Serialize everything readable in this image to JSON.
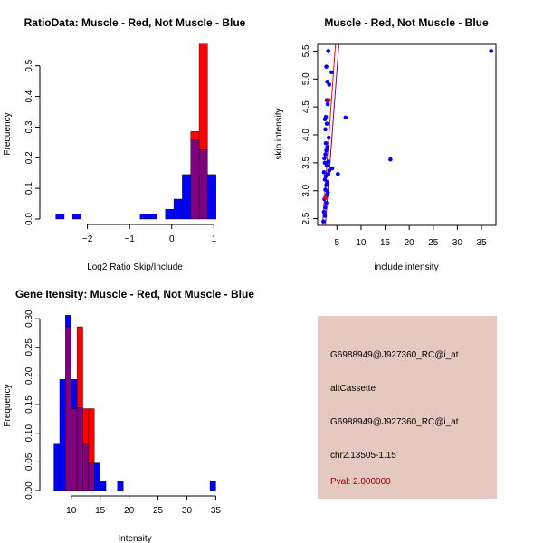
{
  "colors": {
    "red": "#ff0000",
    "blue": "#0000ff",
    "overlap": "#800080",
    "fit_line_red": "#ff0000",
    "fit_line_purple": "#7f0060",
    "info_bg": "#e5c8c0",
    "pval": "#8b0000"
  },
  "chart_data": [
    {
      "id": "ratio",
      "type": "bar",
      "title": "RatioData: Muscle - Red, Not Muscle - Blue",
      "xlabel": "Log2 Ratio Skip/Include",
      "ylabel": "Frequency",
      "xlim": [
        -3.0,
        1.25
      ],
      "ylim": [
        0,
        0.57
      ],
      "xticks": [
        -2,
        -1,
        0,
        1
      ],
      "yticks": [
        0.0,
        0.1,
        0.2,
        0.3,
        0.4,
        0.5
      ],
      "ytick_labels": [
        "0.0",
        "0.1",
        "0.2",
        "0.3",
        "0.4",
        "0.5"
      ],
      "bin_edges": [
        -2.75,
        -2.55,
        -2.35,
        -2.15,
        -1.95,
        -1.75,
        -1.55,
        -1.35,
        -1.15,
        -0.95,
        -0.75,
        -0.55,
        -0.35,
        -0.15,
        0.05,
        0.25,
        0.45,
        0.65,
        0.85,
        1.05
      ],
      "series": [
        {
          "name": "Not Muscle",
          "color": "blue",
          "values": [
            0.016,
            0,
            0.016,
            0,
            0,
            0,
            0,
            0,
            0,
            0,
            0.016,
            0.016,
            0,
            0.032,
            0.065,
            0.145,
            0.258,
            0.226,
            0.145,
            0.081
          ]
        },
        {
          "name": "Muscle",
          "color": "red",
          "values": [
            0,
            0,
            0,
            0,
            0,
            0,
            0,
            0,
            0,
            0,
            0,
            0,
            0,
            0,
            0,
            0,
            0.286,
            0.571,
            0,
            0
          ]
        }
      ]
    },
    {
      "id": "scatter",
      "type": "scatter",
      "title": "Muscle - Red, Not Muscle - Blue",
      "xlabel": "include intensity",
      "ylabel": "skip intensity",
      "xlim": [
        1.0,
        38.0
      ],
      "ylim": [
        2.38,
        5.62
      ],
      "xticks": [
        5,
        10,
        15,
        20,
        25,
        30,
        35
      ],
      "yticks": [
        2.5,
        3.0,
        3.5,
        4.0,
        4.5,
        5.0,
        5.5
      ],
      "ytick_labels": [
        "2.5",
        "3.0",
        "3.5",
        "4.0",
        "4.5",
        "5.0",
        "5.5"
      ],
      "points_blue": [
        [
          2.2,
          2.45
        ],
        [
          2.5,
          2.55
        ],
        [
          2.3,
          2.62
        ],
        [
          2.6,
          2.7
        ],
        [
          2.8,
          2.78
        ],
        [
          2.4,
          2.85
        ],
        [
          2.9,
          2.92
        ],
        [
          3.1,
          2.97
        ],
        [
          2.6,
          3.02
        ],
        [
          2.8,
          3.1
        ],
        [
          3.0,
          3.15
        ],
        [
          2.5,
          3.2
        ],
        [
          2.7,
          3.26
        ],
        [
          3.2,
          3.3
        ],
        [
          2.3,
          3.33
        ],
        [
          3.4,
          3.36
        ],
        [
          5.2,
          3.3
        ],
        [
          4.0,
          3.4
        ],
        [
          2.9,
          3.45
        ],
        [
          2.5,
          3.5
        ],
        [
          3.2,
          3.52
        ],
        [
          2.4,
          3.58
        ],
        [
          2.6,
          3.65
        ],
        [
          2.8,
          3.72
        ],
        [
          3.0,
          3.78
        ],
        [
          2.7,
          3.85
        ],
        [
          3.3,
          3.95
        ],
        [
          2.6,
          4.1
        ],
        [
          2.9,
          4.2
        ],
        [
          2.5,
          4.28
        ],
        [
          2.7,
          4.32
        ],
        [
          6.8,
          4.31
        ],
        [
          3.1,
          4.55
        ],
        [
          2.9,
          4.62
        ],
        [
          3.0,
          4.95
        ],
        [
          3.4,
          4.9
        ],
        [
          2.8,
          5.22
        ],
        [
          3.9,
          5.12
        ],
        [
          3.2,
          5.5
        ],
        [
          16.1,
          3.56
        ],
        [
          37.0,
          5.5
        ]
      ],
      "points_red": [
        [
          2.6,
          2.88
        ],
        [
          3.3,
          4.62
        ]
      ],
      "fit_lines": [
        {
          "color": "fit_line_red",
          "from": [
            2.0,
            2.38
          ],
          "to": [
            4.7,
            5.62
          ]
        },
        {
          "color": "fit_line_purple",
          "from": [
            2.6,
            2.38
          ],
          "to": [
            5.4,
            5.62
          ]
        }
      ]
    },
    {
      "id": "intensity",
      "type": "bar",
      "title": "Gene Itensity: Muscle - Red, Not Muscle - Blue",
      "xlabel": "Intensity",
      "ylabel": "Frequency",
      "xlim": [
        5.5,
        36.5
      ],
      "ylim": [
        0,
        0.305
      ],
      "xticks": [
        10,
        15,
        20,
        25,
        30,
        35
      ],
      "yticks": [
        0.0,
        0.05,
        0.1,
        0.15,
        0.2,
        0.25,
        0.3
      ],
      "ytick_labels": [
        "0.00",
        "0.05",
        "0.10",
        "0.15",
        "0.20",
        "0.25",
        "0.30"
      ],
      "bin_edges": [
        7,
        8,
        9,
        10,
        11,
        12,
        13,
        14,
        15,
        16,
        17,
        18,
        19,
        20,
        21,
        22,
        23,
        24,
        25,
        26,
        27,
        28,
        29,
        30,
        31,
        32,
        33,
        34,
        35
      ],
      "series": [
        {
          "name": "Not Muscle",
          "color": "blue",
          "values": [
            0.081,
            0.194,
            0.306,
            0.194,
            0.145,
            0.081,
            0.048,
            0.048,
            0.016,
            0,
            0,
            0.016,
            0,
            0,
            0,
            0,
            0,
            0,
            0,
            0,
            0,
            0,
            0,
            0,
            0,
            0,
            0,
            0.016
          ]
        },
        {
          "name": "Muscle",
          "color": "red",
          "values": [
            0,
            0,
            0.286,
            0.143,
            0.286,
            0.143,
            0.143,
            0,
            0,
            0,
            0,
            0,
            0,
            0,
            0,
            0,
            0,
            0,
            0,
            0,
            0,
            0,
            0,
            0,
            0,
            0,
            0,
            0
          ]
        }
      ]
    }
  ],
  "info": {
    "line1": "G6988949@J927360_RC@i_at",
    "line2": "altCassette",
    "line3": "G6988949@J927360_RC@i_at",
    "line4": "chr2.13505-1.15",
    "pval": "Pval: 2.000000"
  }
}
